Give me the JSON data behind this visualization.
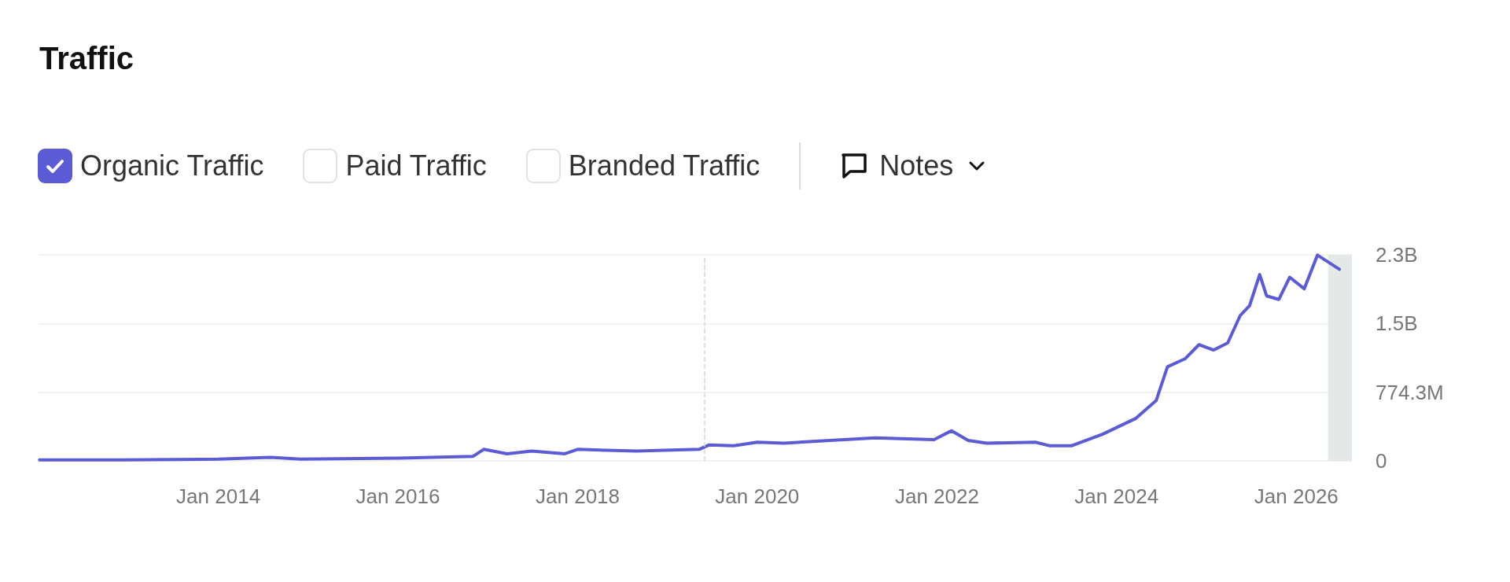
{
  "chart_data": {
    "type": "line",
    "title": "Traffic",
    "x": [
      "2012-01-05",
      "2012-12-05",
      "2014-01-01",
      "2014-08-01",
      "2014-12-01",
      "2016-01-01",
      "2016-11-01",
      "2016-12-15",
      "2017-03-20",
      "2017-06-28",
      "2017-11-10",
      "2018-01-01",
      "2018-08-28",
      "2019-05-10",
      "2019-06-20",
      "2019-09-28",
      "2020-01-01",
      "2020-04-20",
      "2021-04-25",
      "2021-12-20",
      "2022-03-01",
      "2022-05-08",
      "2022-07-22",
      "2023-02-05",
      "2023-04-05",
      "2023-07-01",
      "2023-11-05",
      "2024-03-20",
      "2024-06-10",
      "2024-07-26",
      "2024-10-05",
      "2024-12-01",
      "2025-01-30",
      "2025-03-28",
      "2025-05-18",
      "2025-06-25",
      "2025-08-05",
      "2025-09-02",
      "2025-10-22",
      "2025-12-05",
      "2026-02-02",
      "2026-03-28",
      "2026-06-25"
    ],
    "series": [
      {
        "name": "Organic Traffic",
        "color": "#5b5bd6",
        "values": [
          10000000,
          10000000,
          20000000,
          40000000,
          20000000,
          30000000,
          50000000,
          130000000,
          80000000,
          110000000,
          80000000,
          130000000,
          110000000,
          130000000,
          180000000,
          170000000,
          210000000,
          200000000,
          260000000,
          240000000,
          340000000,
          230000000,
          200000000,
          210000000,
          170000000,
          170000000,
          300000000,
          480000000,
          680000000,
          1060000000,
          1150000000,
          1310000000,
          1250000000,
          1330000000,
          1640000000,
          1750000000,
          2100000000,
          1860000000,
          1820000000,
          2070000000,
          1940000000,
          2320000000,
          2160000000
        ]
      }
    ],
    "xlim": [
      "2012-01-01",
      "2026-08-15"
    ],
    "xticks": [
      {
        "value": "2014-01-01",
        "label": "Jan 2014"
      },
      {
        "value": "2016-01-01",
        "label": "Jan 2016"
      },
      {
        "value": "2018-01-01",
        "label": "Jan 2018"
      },
      {
        "value": "2020-01-01",
        "label": "Jan 2020"
      },
      {
        "value": "2022-01-01",
        "label": "Jan 2022"
      },
      {
        "value": "2024-01-01",
        "label": "Jan 2024"
      },
      {
        "value": "2026-01-01",
        "label": "Jan 2026"
      }
    ],
    "ylim": [
      0,
      2322900000
    ],
    "yticks": [
      0,
      {
        "value": 774300000,
        "label": "774.3M"
      },
      {
        "value": 1548600000,
        "label": "1.5B"
      },
      {
        "value": 2322900000,
        "label": "2.3B"
      }
    ],
    "ref_lines": [
      {
        "axis": "x",
        "value": "2019-06-01",
        "line_style": "dashed",
        "color": "#d6d6d6"
      }
    ],
    "bands": [
      {
        "axis": "x",
        "from": "2026-05-10",
        "to": "2026-08-15",
        "color": "#e4e9e7"
      }
    ],
    "annotations": [
      "Paid Traffic",
      "Branded Traffic",
      "Notes"
    ],
    "grid": "y",
    "legend": "top left",
    "marker": "none",
    "line_style": "solid"
  }
}
